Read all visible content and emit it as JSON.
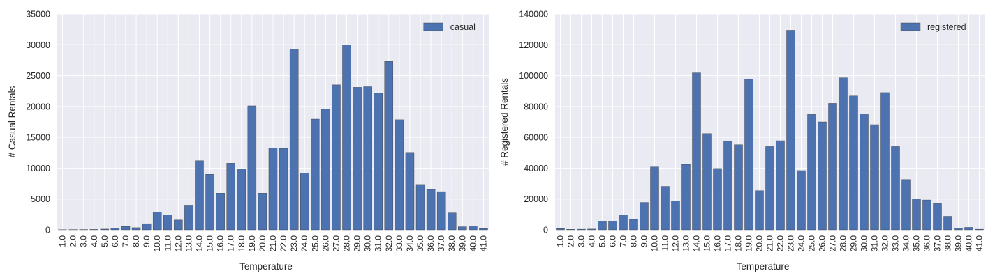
{
  "chart_data": [
    {
      "type": "bar",
      "title": "",
      "xlabel": "Temperature",
      "ylabel": "# Casual Rentals",
      "ylim": [
        0,
        35000
      ],
      "yticks": [
        "0",
        "5000",
        "10000",
        "15000",
        "20000",
        "25000",
        "30000",
        "35000"
      ],
      "grid": true,
      "legend_position": "top-right",
      "bar_color": "#4c72b0",
      "background_color": "#eaeaf2",
      "categories": [
        "1.0",
        "2.0",
        "3.0",
        "4.0",
        "5.0",
        "6.0",
        "7.0",
        "8.0",
        "9.0",
        "10.0",
        "11.0",
        "12.0",
        "13.0",
        "14.0",
        "15.0",
        "16.0",
        "17.0",
        "18.0",
        "19.0",
        "20.0",
        "21.0",
        "22.0",
        "23.0",
        "24.0",
        "25.0",
        "26.0",
        "27.0",
        "28.0",
        "29.0",
        "30.0",
        "31.0",
        "32.0",
        "33.0",
        "34.0",
        "35.0",
        "36.0",
        "37.0",
        "38.0",
        "39.0",
        "40.0",
        "41.0"
      ],
      "series": [
        {
          "name": "casual",
          "values": [
            20,
            30,
            40,
            60,
            120,
            300,
            550,
            350,
            1000,
            2850,
            2450,
            1600,
            3900,
            11200,
            9000,
            5950,
            10800,
            9850,
            20100,
            5950,
            13250,
            13200,
            29300,
            9200,
            17950,
            19550,
            23500,
            30000,
            23100,
            23200,
            22150,
            27300,
            17850,
            12550,
            7350,
            6550,
            6200,
            2750,
            500,
            650,
            200
          ]
        }
      ]
    },
    {
      "type": "bar",
      "title": "",
      "xlabel": "Temperature",
      "ylabel": "# Registered Rentals",
      "ylim": [
        0,
        140000
      ],
      "yticks": [
        "0",
        "20000",
        "40000",
        "60000",
        "80000",
        "100000",
        "120000",
        "140000"
      ],
      "grid": true,
      "legend_position": "top-right",
      "bar_color": "#4c72b0",
      "background_color": "#eaeaf2",
      "categories": [
        "1.0",
        "2.0",
        "3.0",
        "4.0",
        "5.0",
        "6.0",
        "7.0",
        "8.0",
        "9.0",
        "10.0",
        "11.0",
        "12.0",
        "13.0",
        "14.0",
        "15.0",
        "16.0",
        "17.0",
        "18.0",
        "19.0",
        "20.0",
        "21.0",
        "22.0",
        "23.0",
        "24.0",
        "25.0",
        "26.0",
        "27.0",
        "28.0",
        "29.0",
        "30.0",
        "31.0",
        "32.0",
        "33.0",
        "34.0",
        "35.0",
        "36.0",
        "37.0",
        "38.0",
        "39.0",
        "40.0",
        "41.0"
      ],
      "series": [
        {
          "name": "registered",
          "values": [
            800,
            300,
            400,
            500,
            5600,
            5600,
            9600,
            6800,
            17800,
            40800,
            28200,
            18600,
            42400,
            101800,
            62400,
            39800,
            57400,
            55200,
            97600,
            25400,
            54000,
            57800,
            129400,
            38400,
            74800,
            70000,
            82000,
            98600,
            86800,
            75200,
            68200,
            89000,
            54000,
            32600,
            20000,
            19400,
            17000,
            8800,
            1000,
            1600,
            400
          ]
        }
      ]
    }
  ]
}
